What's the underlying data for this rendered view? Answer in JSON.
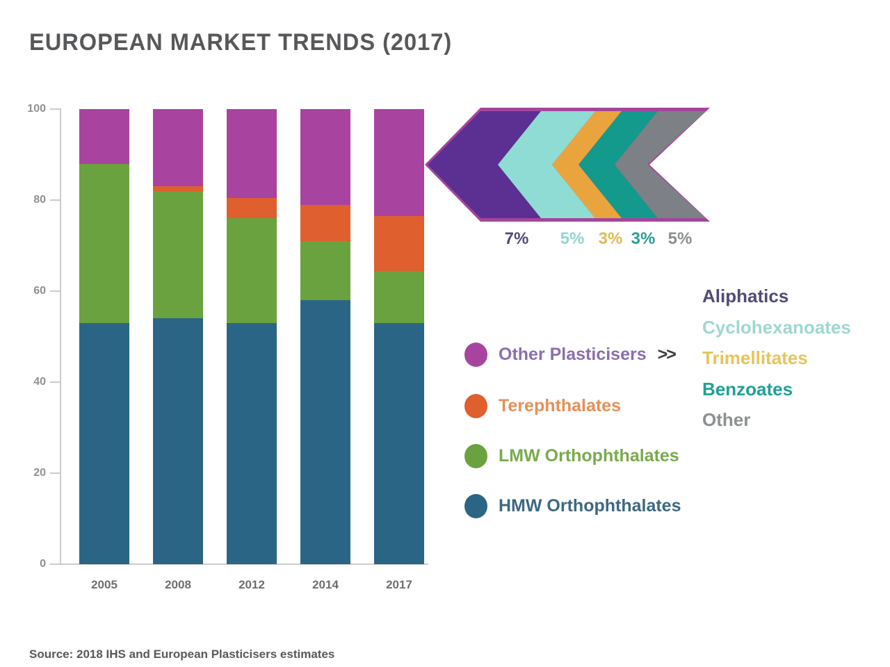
{
  "title": "EUROPEAN MARKET TRENDS (2017)",
  "source": "Source: 2018 IHS and European Plasticisers estimates",
  "chart_data": {
    "type": "bar",
    "subtype": "stacked-100-percent",
    "categories": [
      "2005",
      "2008",
      "2012",
      "2014",
      "2017"
    ],
    "series": [
      {
        "name": "HMW Orthophthalates",
        "color": "#2b6586",
        "values": [
          53,
          54,
          53,
          58,
          53
        ]
      },
      {
        "name": "LMW Orthophthalates",
        "color": "#6aa23f",
        "values": [
          35,
          28,
          23,
          13,
          11.5
        ]
      },
      {
        "name": "Terephthalates",
        "color": "#df5f2e",
        "values": [
          0,
          1,
          4.5,
          8,
          12
        ]
      },
      {
        "name": "Other Plasticisers",
        "color": "#a8449f",
        "values": [
          12,
          17,
          19.5,
          21,
          23.5
        ]
      }
    ],
    "ylim": [
      0,
      100
    ],
    "yticks": [
      0,
      20,
      40,
      60,
      80,
      100
    ],
    "grid": false,
    "legend_position": "right"
  },
  "legend": {
    "more_symbol": ">>",
    "items": [
      {
        "label": "Other Plasticisers",
        "dot_color": "#a8449f",
        "text_color": "#8a6fae",
        "has_more": true
      },
      {
        "label": "Terephthalates",
        "dot_color": "#df5f2e",
        "text_color": "#e39057",
        "has_more": false
      },
      {
        "label": "LMW Orthophthalates",
        "dot_color": "#6aa23f",
        "text_color": "#79aa4e",
        "has_more": false
      },
      {
        "label": "HMW Orthophthalates",
        "dot_color": "#2b6586",
        "text_color": "#3e6880",
        "has_more": false
      }
    ]
  },
  "breakdown": {
    "outline_color": "#a4459d",
    "items": [
      {
        "label": "Aliphatics",
        "pct": "7%",
        "chevron_color": "#5c2f92",
        "pct_color": "#524a74",
        "list_color": "#514a77"
      },
      {
        "label": "Cyclohexanoates",
        "pct": "5%",
        "chevron_color": "#8edcd4",
        "pct_color": "#92d6cd",
        "list_color": "#9ed8d0"
      },
      {
        "label": "Trimellitates",
        "pct": "3%",
        "chevron_color": "#eaa43e",
        "pct_color": "#dfbc52",
        "list_color": "#e6c45c"
      },
      {
        "label": "Benzoates",
        "pct": "3%",
        "chevron_color": "#14998d",
        "pct_color": "#2b9e93",
        "list_color": "#21a096"
      },
      {
        "label": "Other",
        "pct": "5%",
        "chevron_color": "#7d8084",
        "pct_color": "#8b8e90",
        "list_color": "#8d9092"
      }
    ]
  }
}
